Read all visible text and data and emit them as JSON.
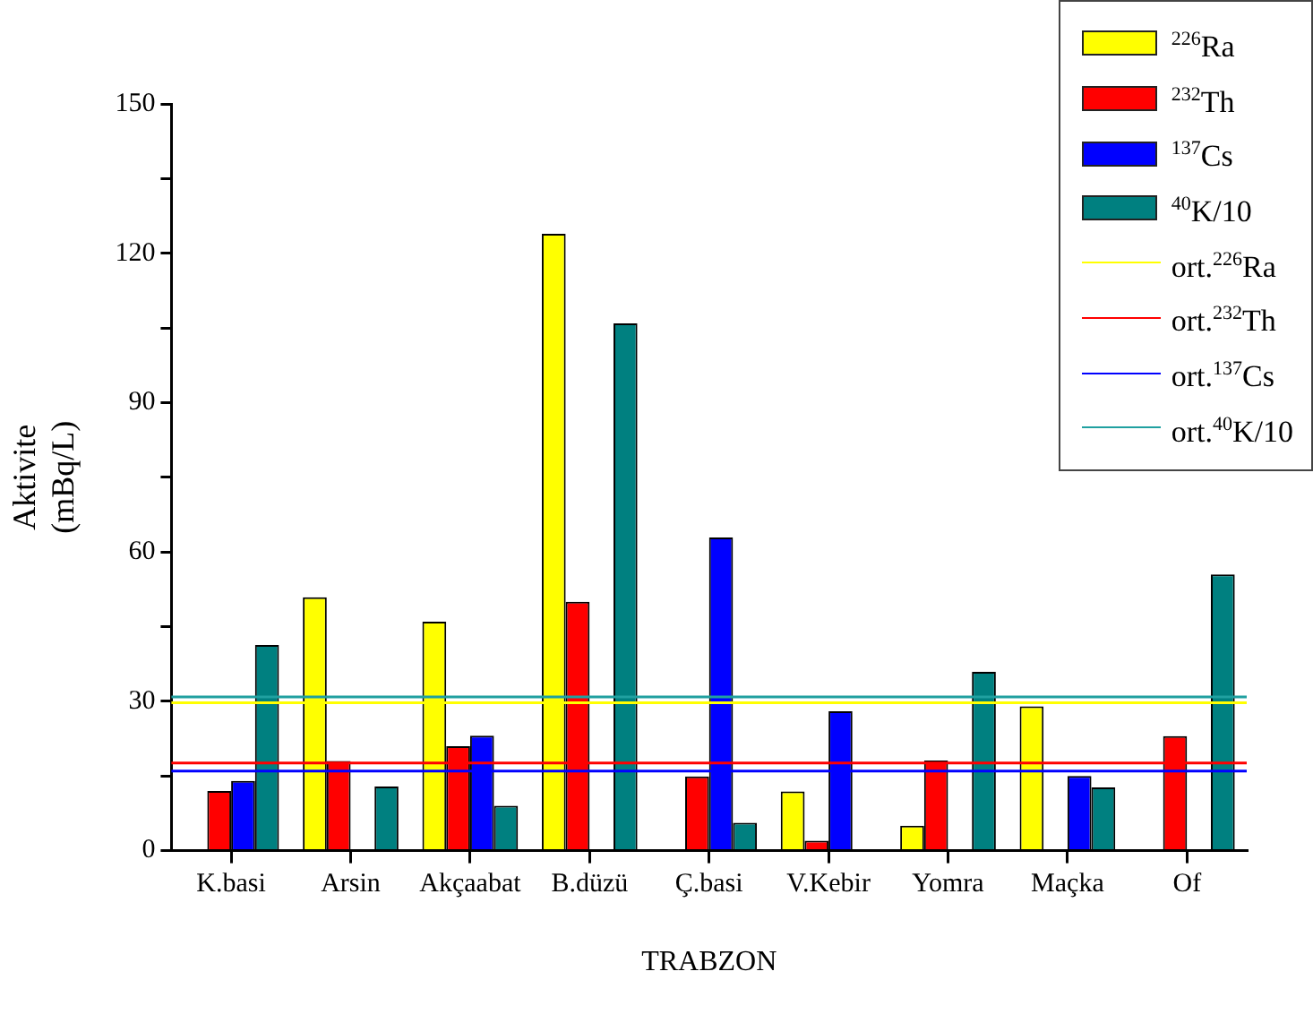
{
  "chart_data": {
    "type": "bar",
    "xlabel": "TRABZON",
    "ylabel": "Aktivite\n(mBq/L)",
    "categories": [
      "K.basi",
      "Arsin",
      "Akçaabat",
      "B.düzü",
      "Ç.basi",
      "V.Kebir",
      "Yomra",
      "Maçka",
      "Of"
    ],
    "series": [
      {
        "name": "$^{226}$Ra",
        "color": "#ffff00",
        "values": [
          null,
          50.9,
          46,
          123.9,
          null,
          11.9,
          5,
          29,
          null
        ]
      },
      {
        "name": "$^{232}$Th",
        "color": "#ff0000",
        "values": [
          12,
          18,
          21,
          50,
          14.9,
          2,
          18.1,
          null,
          23
        ]
      },
      {
        "name": "$^{137}$Cs",
        "color": "#0000ff",
        "values": [
          14,
          null,
          23.1,
          null,
          62.9,
          28,
          null,
          15,
          null
        ]
      },
      {
        "name": "$^{40}$K/10",
        "color": "#008080",
        "values": [
          41.3,
          12.9,
          9,
          105.9,
          5.6,
          null,
          35.9,
          12.7,
          55.5
        ]
      }
    ],
    "ref_lines": [
      {
        "axis": "y",
        "value": 29.7,
        "label": "ort.$^{226}$Ra",
        "color": "#ffff00"
      },
      {
        "axis": "y",
        "value": 17.6,
        "label": "ort.$^{232}$Th",
        "color": "#ff0000"
      },
      {
        "axis": "y",
        "value": 16,
        "label": "ort.$^{137}$Cs",
        "color": "#0000ff"
      },
      {
        "axis": "y",
        "value": 30.9,
        "label": "ort.$^{40}$K/10",
        "color": "#20a0a0"
      }
    ],
    "ylim": [
      0,
      150
    ],
    "yticks": [
      0,
      {
        "value": 15,
        "label": null
      },
      30,
      {
        "value": 45,
        "label": null
      },
      60,
      {
        "value": 75,
        "label": null
      },
      90,
      {
        "value": 105,
        "label": null
      },
      120,
      {
        "value": 135,
        "label": null
      },
      150
    ],
    "grid": false,
    "legend": "top right"
  }
}
